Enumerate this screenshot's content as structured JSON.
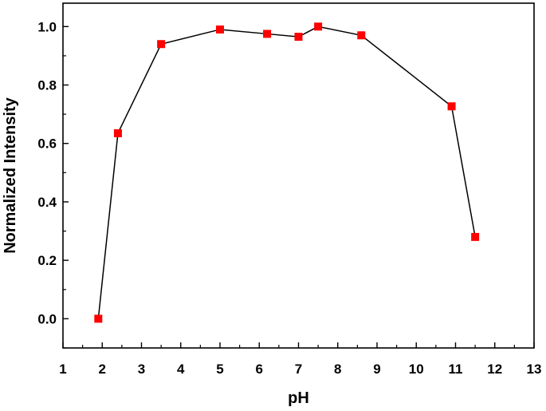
{
  "chart_data": {
    "type": "line",
    "markers": true,
    "title": "",
    "xlabel": "pH",
    "ylabel": "Normalized Intensity",
    "xlim": [
      1,
      13
    ],
    "ylim": [
      -0.1,
      1.08
    ],
    "x_ticks": [
      1,
      2,
      3,
      4,
      5,
      6,
      7,
      8,
      9,
      10,
      11,
      12,
      13
    ],
    "x_tick_labels": [
      "1",
      "2",
      "3",
      "4",
      "5",
      "6",
      "7",
      "8",
      "9",
      "10",
      "11",
      "12",
      "13"
    ],
    "y_ticks": [
      0.0,
      0.2,
      0.4,
      0.6,
      0.8,
      1.0
    ],
    "y_tick_labels": [
      "0.0",
      "0.2",
      "0.4",
      "0.6",
      "0.8",
      "1.0"
    ],
    "grid": false,
    "legend": "none",
    "marker_color": "#ff0000",
    "line_color": "#000000",
    "series": [
      {
        "x": [
          1.9,
          2.4,
          3.5,
          5.0,
          6.2,
          7.0,
          7.5,
          8.6,
          10.9,
          11.5
        ],
        "y": [
          0.0,
          0.635,
          0.94,
          0.99,
          0.975,
          0.965,
          1.0,
          0.97,
          0.727,
          0.28
        ]
      }
    ]
  }
}
